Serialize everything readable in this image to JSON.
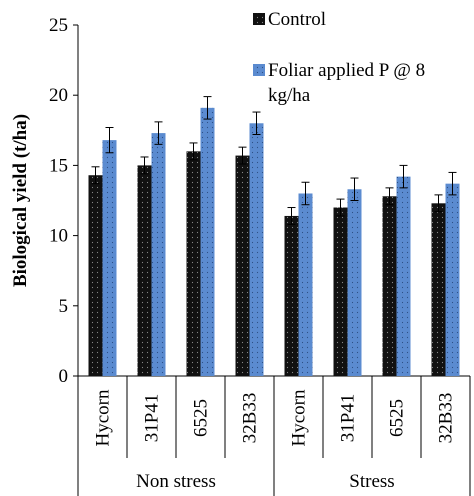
{
  "chart_data": {
    "type": "bar",
    "ylabel": "Biological yield (t/ha)",
    "xlabel": "",
    "ylim": [
      0,
      25
    ],
    "yticks": [
      0,
      5,
      10,
      15,
      20,
      25
    ],
    "grid": false,
    "legend_position": "top-right",
    "categories": [
      "Hycorn",
      "31P41",
      "6525",
      "32B33",
      "Hycorn",
      "31P41",
      "6525",
      "32B33"
    ],
    "groups": [
      {
        "label": "Non stress",
        "start": 0,
        "count": 4
      },
      {
        "label": "Stress",
        "start": 4,
        "count": 4
      }
    ],
    "series": [
      {
        "name": "Control",
        "color": "#111111",
        "pattern": "dotted",
        "values": [
          14.3,
          15.0,
          16.0,
          15.7,
          11.4,
          12.0,
          12.8,
          12.3
        ],
        "errors": [
          0.6,
          0.6,
          0.6,
          0.6,
          0.6,
          0.6,
          0.6,
          0.6
        ]
      },
      {
        "name": "Foliar applied P @ 8 kg/ha",
        "legend_lines": [
          "Foliar applied P @ 8",
          "kg/ha"
        ],
        "color": "#5b8bd0",
        "pattern": "dotted",
        "values": [
          16.8,
          17.3,
          19.1,
          18.0,
          13.0,
          13.3,
          14.2,
          13.7
        ],
        "errors": [
          0.9,
          0.8,
          0.8,
          0.8,
          0.8,
          0.8,
          0.8,
          0.8
        ]
      }
    ]
  }
}
